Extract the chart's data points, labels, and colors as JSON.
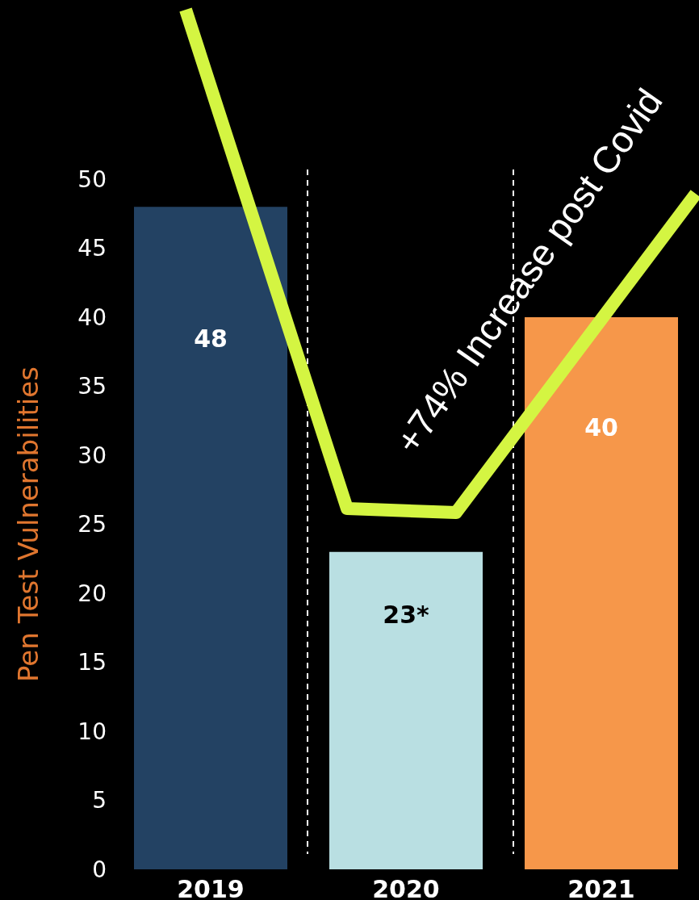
{
  "chart_data": {
    "type": "bar",
    "ylabel": "Pen Test Vulnerabilities",
    "categories": [
      "2019",
      "2020",
      "2021"
    ],
    "values": [
      48,
      23,
      40
    ],
    "value_labels": [
      "48",
      "23*",
      "40"
    ],
    "colors": [
      "#234263",
      "#b9dfe2",
      "#f6974a"
    ],
    "ylim": [
      0,
      50
    ],
    "yticks": [
      0,
      5,
      10,
      15,
      20,
      25,
      30,
      35,
      40,
      45,
      50
    ],
    "grid": false,
    "annotations": [
      "+74% Increase post Covid"
    ]
  }
}
